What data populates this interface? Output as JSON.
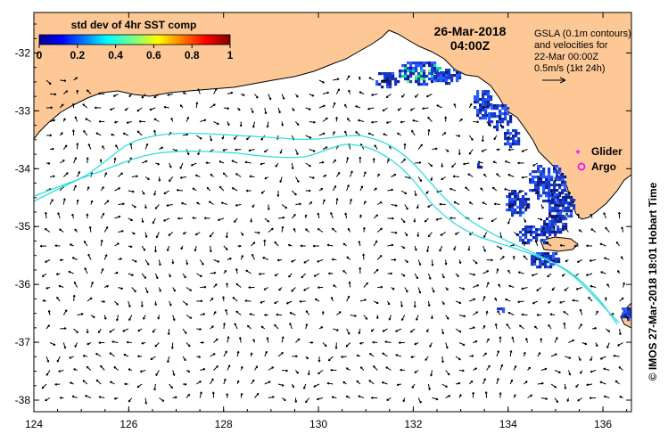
{
  "map": {
    "colorbar": {
      "title": "std dev of 4hr SST comp",
      "ticks": [
        "0",
        "0.2",
        "0.4",
        "0.6",
        "0.8",
        "1"
      ],
      "tick_values": [
        0,
        0.2,
        0.4,
        0.6,
        0.8,
        1.0
      ]
    },
    "timestamp": {
      "date": "26-Mar-2018",
      "time": "04:00Z"
    },
    "gsla_note": {
      "line1": "GSLA (0.1m contours)",
      "line2": "and velocities for",
      "line3": "22-Mar 00:00Z",
      "line4": "0.5m/s (1kt 24h)"
    },
    "legend": {
      "glider": "Glider",
      "argo": "Argo"
    },
    "credit": "© IMOS 27-Mar-2018 18:01 Hobart Time",
    "axes": {
      "lon_range": [
        124,
        136.6
      ],
      "lat_range": [
        -38.2,
        -31.3
      ],
      "x_ticks": [
        "124",
        "126",
        "128",
        "130",
        "132",
        "134",
        "136"
      ],
      "x_tick_values": [
        124,
        126,
        128,
        130,
        132,
        134,
        136
      ],
      "y_ticks": [
        "-32",
        "-33",
        "-34",
        "-35",
        "-36",
        "-37",
        "-38"
      ],
      "y_tick_values": [
        -32,
        -33,
        -34,
        -35,
        -36,
        -37,
        -38
      ]
    },
    "colors": {
      "land": "#fdc896",
      "sea": "#ffffff",
      "contour": "#33dddd",
      "sst_high": "#1a3fd6",
      "sst_low": "#0d1f8f",
      "legend_marker": "#ee22ee"
    }
  }
}
